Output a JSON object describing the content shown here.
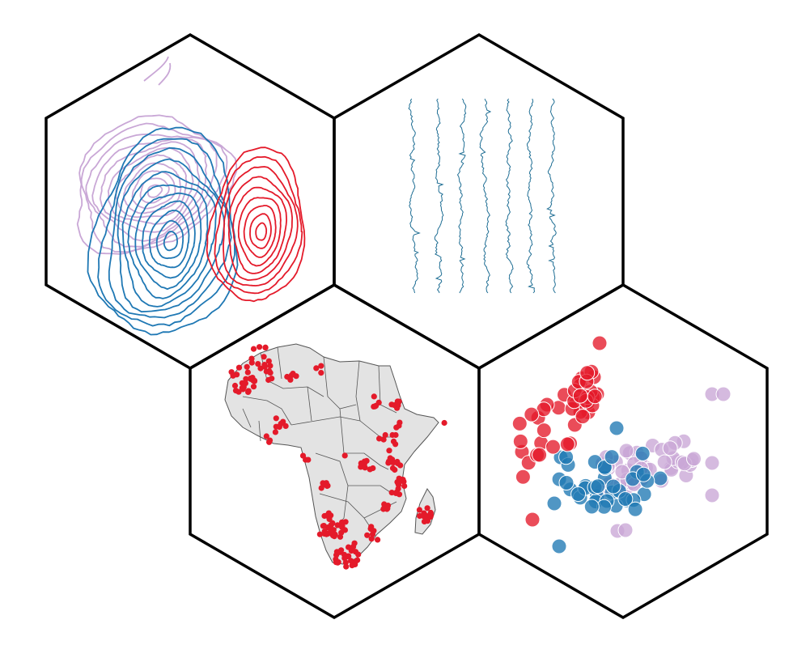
{
  "colors": {
    "red": "#e41a2a",
    "blue": "#1f78b4",
    "lilac": "#c9a7d6",
    "hex_stroke": "#000000",
    "map_fill": "#e3e3e3",
    "map_stroke": "#555555",
    "timeseries": "#1f6e94"
  },
  "panels": [
    {
      "name": "contour-panel",
      "content": "kde-contours",
      "series_colors": [
        "lilac",
        "blue",
        "red"
      ]
    },
    {
      "name": "timeseries-panel",
      "content": "stacked-timeseries",
      "series_count": 7
    },
    {
      "name": "africa-map-panel",
      "content": "point-map"
    },
    {
      "name": "scatter-panel",
      "content": "scatter",
      "series_colors": [
        "red",
        "blue",
        "lilac"
      ]
    }
  ]
}
